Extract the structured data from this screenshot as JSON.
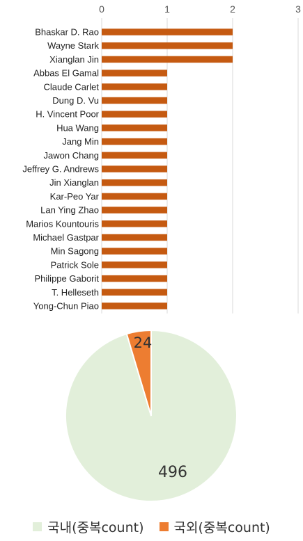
{
  "chart_data": [
    {
      "type": "bar",
      "orientation": "horizontal",
      "categories": [
        "Bhaskar D. Rao",
        "Wayne Stark",
        "Xianglan Jin",
        "Abbas El Gamal",
        "Claude Carlet",
        "Dung D. Vu",
        "H. Vincent Poor",
        "Hua Wang",
        "Jang Min",
        "Jawon Chang",
        "Jeffrey G. Andrews",
        "Jin Xianglan",
        "Kar-Peo Yar",
        "Lan Ying Zhao",
        "Marios Kountouris",
        "Michael Gastpar",
        "Min Sagong",
        "Patrick Sole",
        "Philippe Gaborit",
        "T. Helleseth",
        "Yong-Chun Piao"
      ],
      "values": [
        2,
        2,
        2,
        1,
        1,
        1,
        1,
        1,
        1,
        1,
        1,
        1,
        1,
        1,
        1,
        1,
        1,
        1,
        1,
        1,
        1
      ],
      "xlim": [
        0,
        3
      ],
      "xticks": [
        "0",
        "1",
        "2",
        "3"
      ],
      "axis_position": "top",
      "grid": true,
      "color": "#c55a11"
    },
    {
      "type": "pie",
      "labels": [
        "국내(중복count)",
        "국외(중복count)"
      ],
      "values": [
        496,
        24
      ],
      "value_labels": [
        "496",
        "24"
      ],
      "colors": [
        "#e2efda",
        "#ed7d31"
      ],
      "legend": "bottom"
    }
  ]
}
